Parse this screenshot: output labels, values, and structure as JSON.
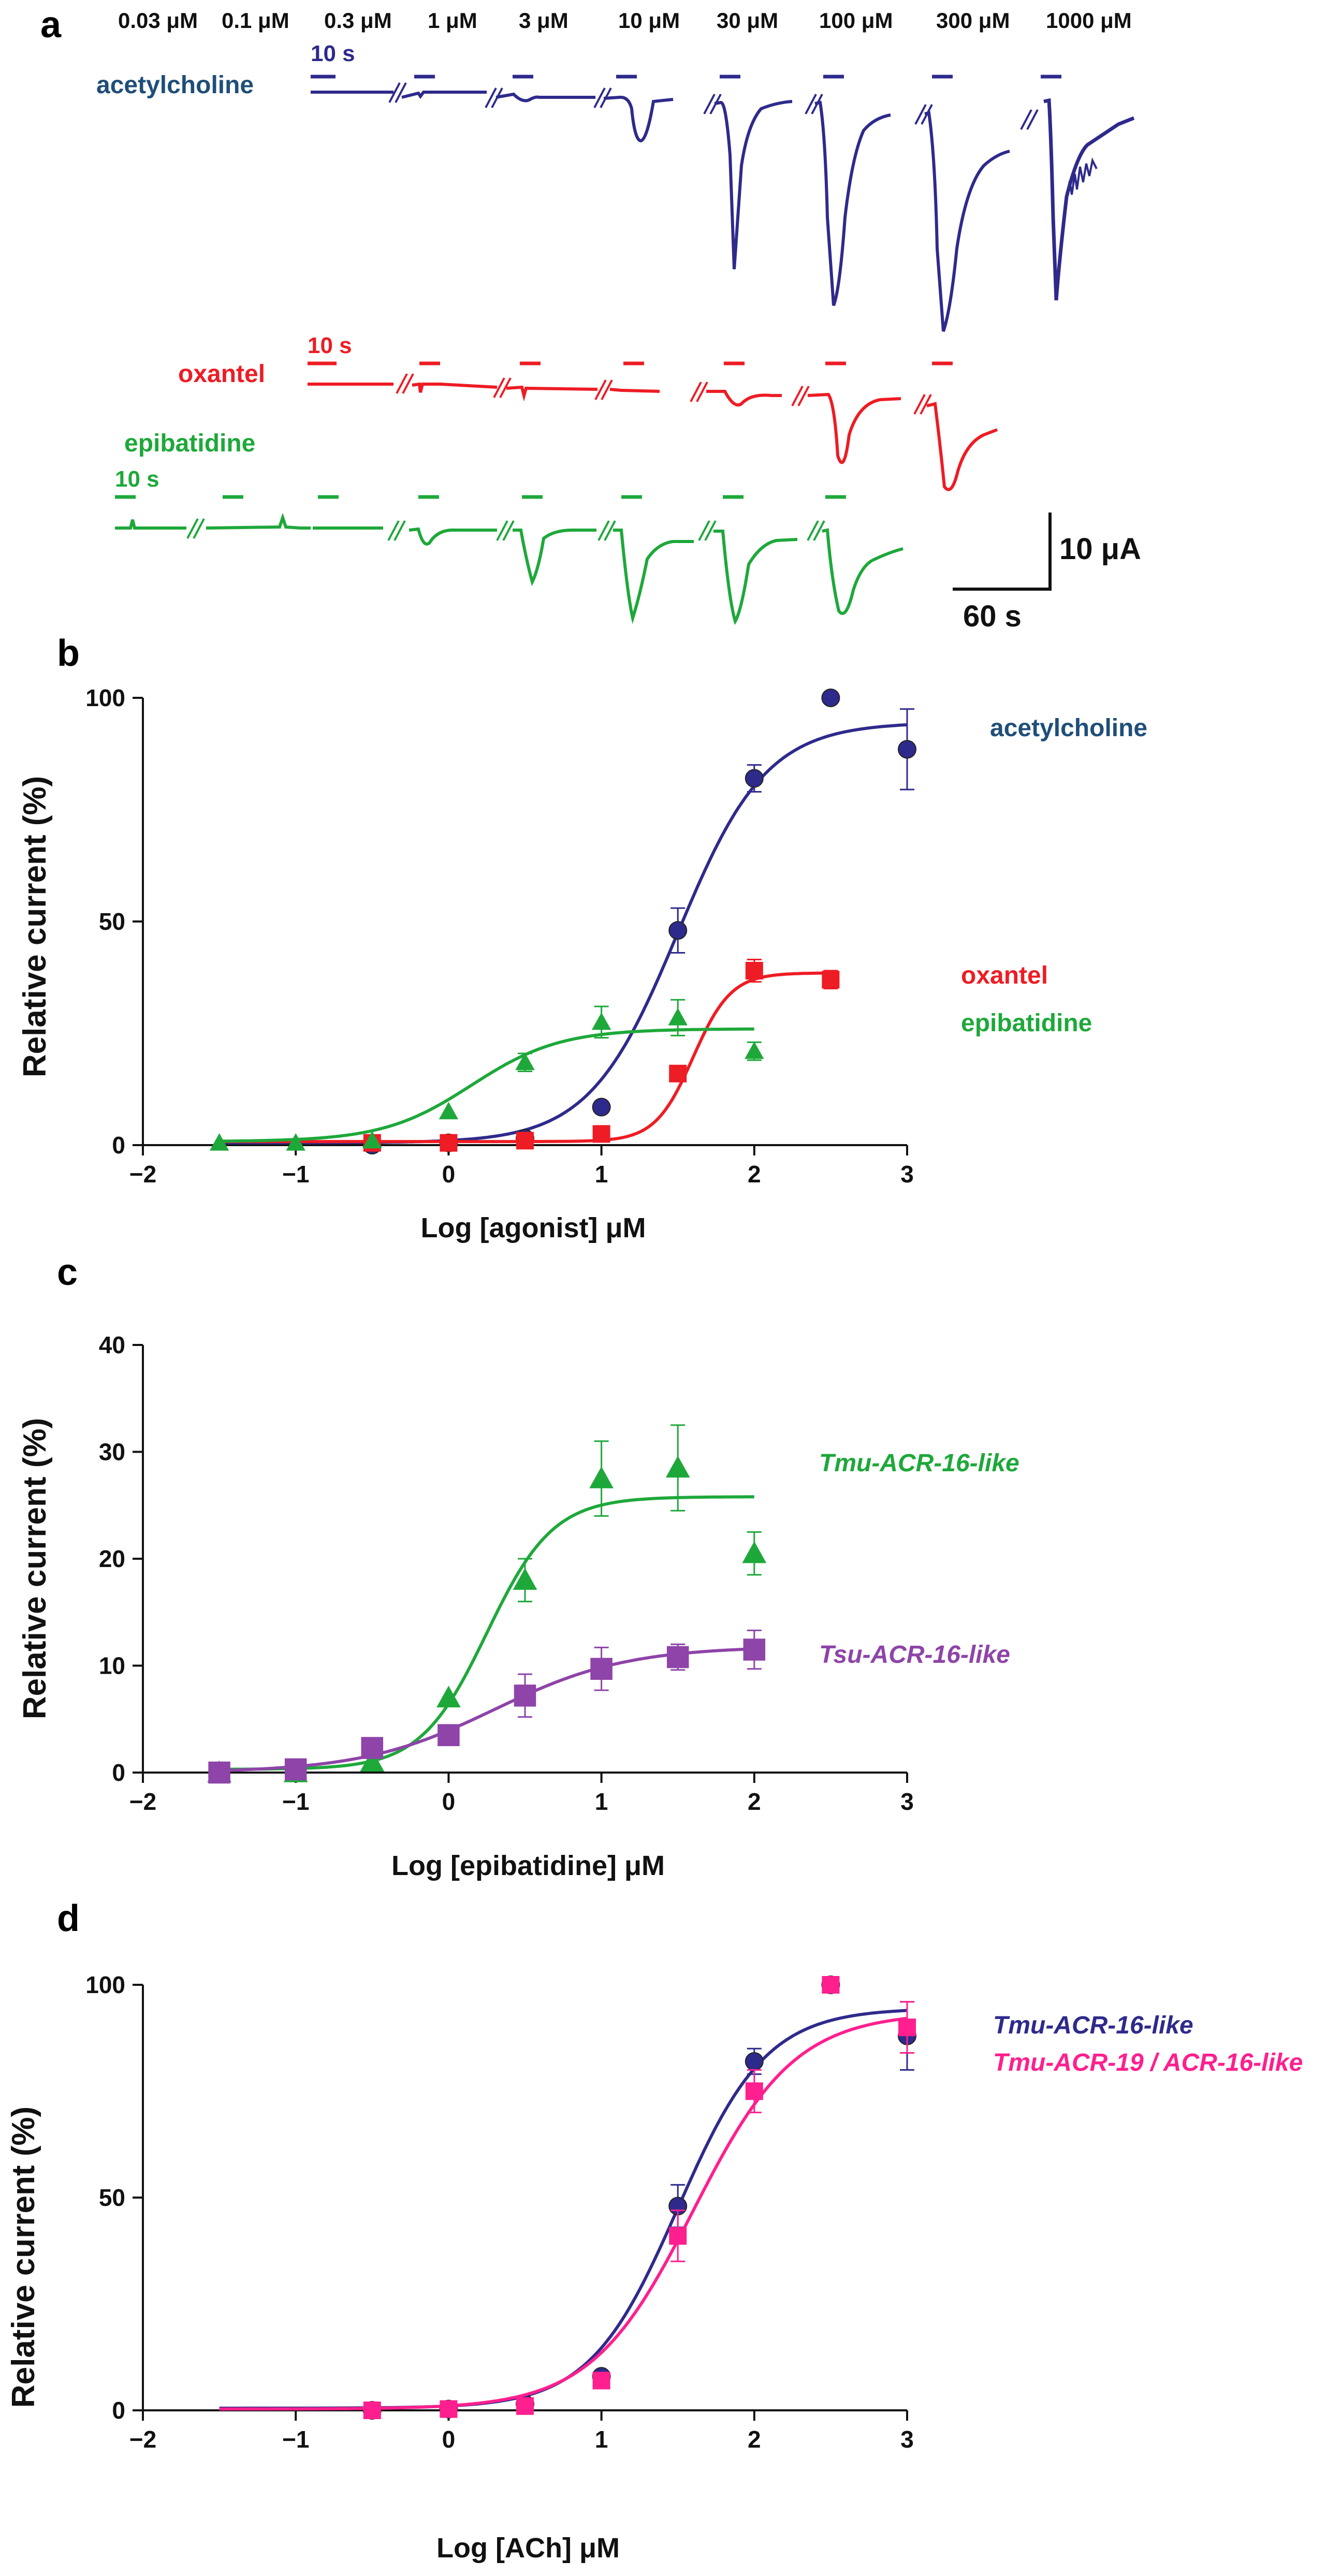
{
  "panel_labels": {
    "a": "a",
    "b": "b",
    "c": "c",
    "d": "d"
  },
  "colors": {
    "acetylcholine": "#2e2a8c",
    "acetylcholine_label": "#1f4e79",
    "oxantel": "#ee1c24",
    "epibatidine": "#1ea83a",
    "tsu": "#8e44a8",
    "tmu19": "#ff1f8e"
  },
  "panel_a": {
    "concentrations": [
      "0.03 μM",
      "0.1 μM",
      "0.3 μM",
      "1 μM",
      "3 μM",
      "10 μM",
      "30 μM",
      "100 μM",
      "300 μM",
      "1000 μM"
    ],
    "trace_labels": {
      "acetylcholine": "acetylcholine",
      "oxantel": "oxantel",
      "epibatidine": "epibatidine"
    },
    "time_bars": {
      "acetylcholine": "10 s",
      "oxantel": "10 s",
      "epibatidine": "10 s"
    },
    "scale_current": "10 μA",
    "scale_time": "60 s"
  },
  "chart_data": [
    {
      "panel": "b",
      "type": "scatter",
      "xlabel": "Log [agonist] μM",
      "ylabel": "Relative current (%)",
      "xlim": [
        -2,
        3
      ],
      "ylim": [
        0,
        100
      ],
      "xticks": [
        "−2",
        "−1",
        "0",
        "1",
        "2",
        "3"
      ],
      "yticks": [
        "0",
        "50",
        "100"
      ],
      "series": [
        {
          "name": "acetylcholine",
          "marker": "circle",
          "x": [
            -0.5,
            0,
            0.5,
            1,
            1.5,
            2,
            2.5,
            3
          ],
          "y": [
            0,
            0.5,
            1.5,
            8.5,
            48,
            82,
            100,
            88.5
          ],
          "err": [
            0,
            0,
            0,
            0,
            5,
            3,
            0,
            9
          ],
          "fit": {
            "bottom": 0.5,
            "top": 94.5,
            "logEC50": 1.5,
            "hill": 1.5
          }
        },
        {
          "name": "oxantel",
          "marker": "square",
          "x": [
            -0.5,
            0,
            0.5,
            1,
            1.5,
            2,
            2.5
          ],
          "y": [
            0.5,
            0.5,
            1,
            2.5,
            16,
            39,
            37
          ],
          "err": [
            0,
            0,
            0,
            0,
            0,
            2.5,
            2
          ],
          "fit": {
            "bottom": 0.8,
            "top": 38.5,
            "logEC50": 1.6,
            "hill": 3.5
          }
        },
        {
          "name": "epibatidine",
          "marker": "triangle",
          "x": [
            -1.5,
            -1,
            -0.5,
            0,
            0.5,
            1,
            1.5,
            2
          ],
          "y": [
            0.5,
            0.5,
            1,
            7.5,
            18.5,
            27.5,
            28.5,
            21
          ],
          "err": [
            0,
            0,
            0,
            0,
            2,
            3.5,
            4,
            2
          ],
          "fit": {
            "bottom": 0.8,
            "top": 26,
            "logEC50": 0.15,
            "hill": 1.5
          }
        }
      ]
    },
    {
      "panel": "c",
      "type": "scatter",
      "xlabel": "Log [epibatidine] μM",
      "ylabel": "Relative current (%)",
      "xlim": [
        -2,
        3
      ],
      "ylim": [
        0,
        40
      ],
      "xticks": [
        "−2",
        "−1",
        "0",
        "1",
        "2",
        "3"
      ],
      "yticks": [
        "0",
        "10",
        "20",
        "30",
        "40"
      ],
      "series": [
        {
          "name": "Tmu-ACR-16-like",
          "marker": "triangle",
          "x": [
            -1.5,
            -1,
            -0.5,
            0,
            0.5,
            1,
            1.5,
            2
          ],
          "y": [
            0,
            0,
            1,
            7,
            18,
            27.5,
            28.5,
            20.5
          ],
          "err": [
            0,
            0,
            0,
            0,
            2,
            3.5,
            4,
            2
          ],
          "fit": {
            "bottom": 0.3,
            "top": 25.8,
            "logEC50": 0.25,
            "hill": 2
          }
        },
        {
          "name": "Tsu-ACR-16-like",
          "marker": "square",
          "x": [
            -1.5,
            -1,
            -0.5,
            0,
            0.5,
            1,
            1.5,
            2
          ],
          "y": [
            0,
            0.3,
            2.3,
            3.5,
            7.2,
            9.7,
            10.8,
            11.5
          ],
          "err": [
            0,
            0,
            0,
            0,
            2,
            2,
            1.2,
            1.8
          ],
          "fit": {
            "bottom": 0,
            "top": 11.8,
            "logEC50": 0.3,
            "hill": 1
          }
        }
      ]
    },
    {
      "panel": "d",
      "type": "scatter",
      "xlabel": "Log [ACh] μM",
      "ylabel": "Relative current (%)",
      "xlim": [
        -2,
        3
      ],
      "ylim": [
        0,
        100
      ],
      "xticks": [
        "−2",
        "−1",
        "0",
        "1",
        "2",
        "3"
      ],
      "yticks": [
        "0",
        "50",
        "100"
      ],
      "series": [
        {
          "name": "Tmu-ACR-16-like",
          "marker": "circle",
          "x": [
            -0.5,
            0,
            0.5,
            1,
            1.5,
            2,
            2.5,
            3
          ],
          "y": [
            0,
            0.3,
            1.5,
            8,
            48,
            82,
            100,
            88
          ],
          "err": [
            0,
            0,
            0,
            0,
            5,
            3,
            0,
            8
          ],
          "fit": {
            "bottom": 0.5,
            "top": 94.5,
            "logEC50": 1.5,
            "hill": 1.5
          }
        },
        {
          "name": "Tmu-ACR-19 / ACR-16-like",
          "marker": "square",
          "x": [
            -0.5,
            0,
            0.5,
            1,
            1.5,
            2,
            2.5,
            3
          ],
          "y": [
            0,
            0.3,
            1,
            7,
            41,
            75,
            100,
            90
          ],
          "err": [
            0,
            0,
            0,
            0,
            6,
            5,
            0,
            6
          ],
          "fit": {
            "bottom": 0.3,
            "top": 93.5,
            "logEC50": 1.6,
            "hill": 1.3
          }
        }
      ]
    }
  ]
}
